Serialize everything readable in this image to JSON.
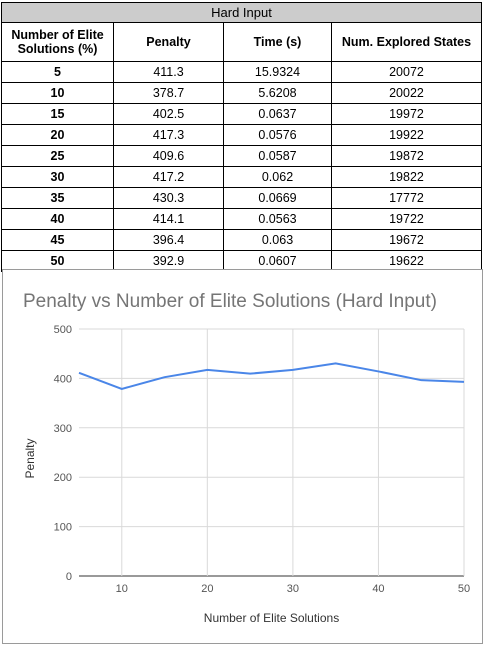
{
  "table": {
    "title": "Hard Input",
    "headers": [
      "Number of Elite Solutions (%)",
      "Penalty",
      "Time (s)",
      "Num. Explored States"
    ],
    "rows": [
      [
        "5",
        "411.3",
        "15.9324",
        "20072"
      ],
      [
        "10",
        "378.7",
        "5.6208",
        "20022"
      ],
      [
        "15",
        "402.5",
        "0.0637",
        "19972"
      ],
      [
        "20",
        "417.3",
        "0.0576",
        "19922"
      ],
      [
        "25",
        "409.6",
        "0.0587",
        "19872"
      ],
      [
        "30",
        "417.2",
        "0.062",
        "19822"
      ],
      [
        "35",
        "430.3",
        "0.0669",
        "17772"
      ],
      [
        "40",
        "414.1",
        "0.0563",
        "19722"
      ],
      [
        "45",
        "396.4",
        "0.063",
        "19672"
      ],
      [
        "50",
        "392.9",
        "0.0607",
        "19622"
      ]
    ]
  },
  "chart_data": {
    "type": "line",
    "title": "Penalty vs Number of Elite Solutions (Hard Input)",
    "xlabel": "Number of Elite Solutions",
    "ylabel": "Penalty",
    "x": [
      5,
      10,
      15,
      20,
      25,
      30,
      35,
      40,
      45,
      50
    ],
    "series": [
      {
        "values": [
          411.3,
          378.7,
          402.5,
          417.3,
          409.6,
          417.2,
          430.3,
          414.1,
          396.4,
          392.9
        ]
      }
    ],
    "xlim": [
      5,
      50
    ],
    "ylim": [
      0,
      500
    ],
    "xticks": [
      10,
      20,
      30,
      40,
      50
    ],
    "yticks": [
      0,
      100,
      200,
      300,
      400,
      500
    ],
    "grid": true,
    "line_color": "#4a86e8"
  }
}
